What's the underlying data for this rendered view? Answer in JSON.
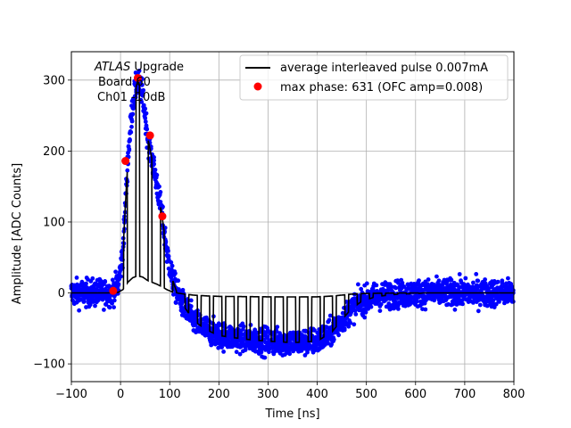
{
  "chart_data": {
    "type": "scatter",
    "title": "",
    "xlabel": "Time [ns]",
    "ylabel": "Amplitude [ADC Counts]",
    "xlim": [
      -100,
      800
    ],
    "ylim": [
      -125,
      340
    ],
    "grid": true,
    "xticks": [
      -100,
      0,
      100,
      200,
      300,
      400,
      500,
      600,
      700,
      800
    ],
    "yticks": [
      -100,
      0,
      100,
      200,
      300
    ],
    "xtick_labels": [
      "−100",
      "0",
      "100",
      "200",
      "300",
      "400",
      "500",
      "600",
      "700",
      "800"
    ],
    "ytick_labels": [
      "−100",
      "0",
      "100",
      "200",
      "300"
    ],
    "annotation": {
      "italic": "ATLAS",
      "line1_rest": " Upgrade",
      "line2": "Board 60",
      "line3": "Ch01 -10dB"
    },
    "legend": {
      "position": "upper-right",
      "entries": [
        {
          "label": "average interleaved pulse 0.007mA",
          "marker": "line",
          "color": "#000000"
        },
        {
          "label": "max phase: 631 (OFC amp=0.008)",
          "marker": "dot",
          "color": "#ff0000"
        }
      ]
    },
    "series": [
      {
        "name": "average interleaved pulse 0.007mA",
        "kind": "line",
        "color": "#000000",
        "sample_period_ns": 25,
        "envelope": {
          "x": [
            -100,
            -20,
            -5,
            5,
            15,
            25,
            35,
            45,
            55,
            65,
            75,
            85,
            95,
            105,
            115,
            130,
            150,
            175,
            200,
            250,
            300,
            350,
            400,
            430,
            450,
            470,
            490,
            520,
            560,
            620,
            800
          ],
          "y": [
            0,
            0,
            10,
            60,
            190,
            270,
            300,
            280,
            220,
            185,
            150,
            105,
            55,
            20,
            0,
            -20,
            -40,
            -52,
            -60,
            -65,
            -68,
            -70,
            -68,
            -55,
            -38,
            -22,
            -12,
            -5,
            -2,
            0,
            0
          ]
        }
      },
      {
        "name": "noisy samples",
        "kind": "scatter",
        "color": "#0000ff",
        "noise_amplitude": 18,
        "x_range": [
          -100,
          800
        ]
      },
      {
        "name": "max phase: 631 (OFC amp=0.008)",
        "kind": "points",
        "color": "#ff0000",
        "x": [
          -15,
          10,
          35,
          60,
          85
        ],
        "y": [
          3,
          186,
          303,
          222,
          108
        ]
      }
    ]
  }
}
